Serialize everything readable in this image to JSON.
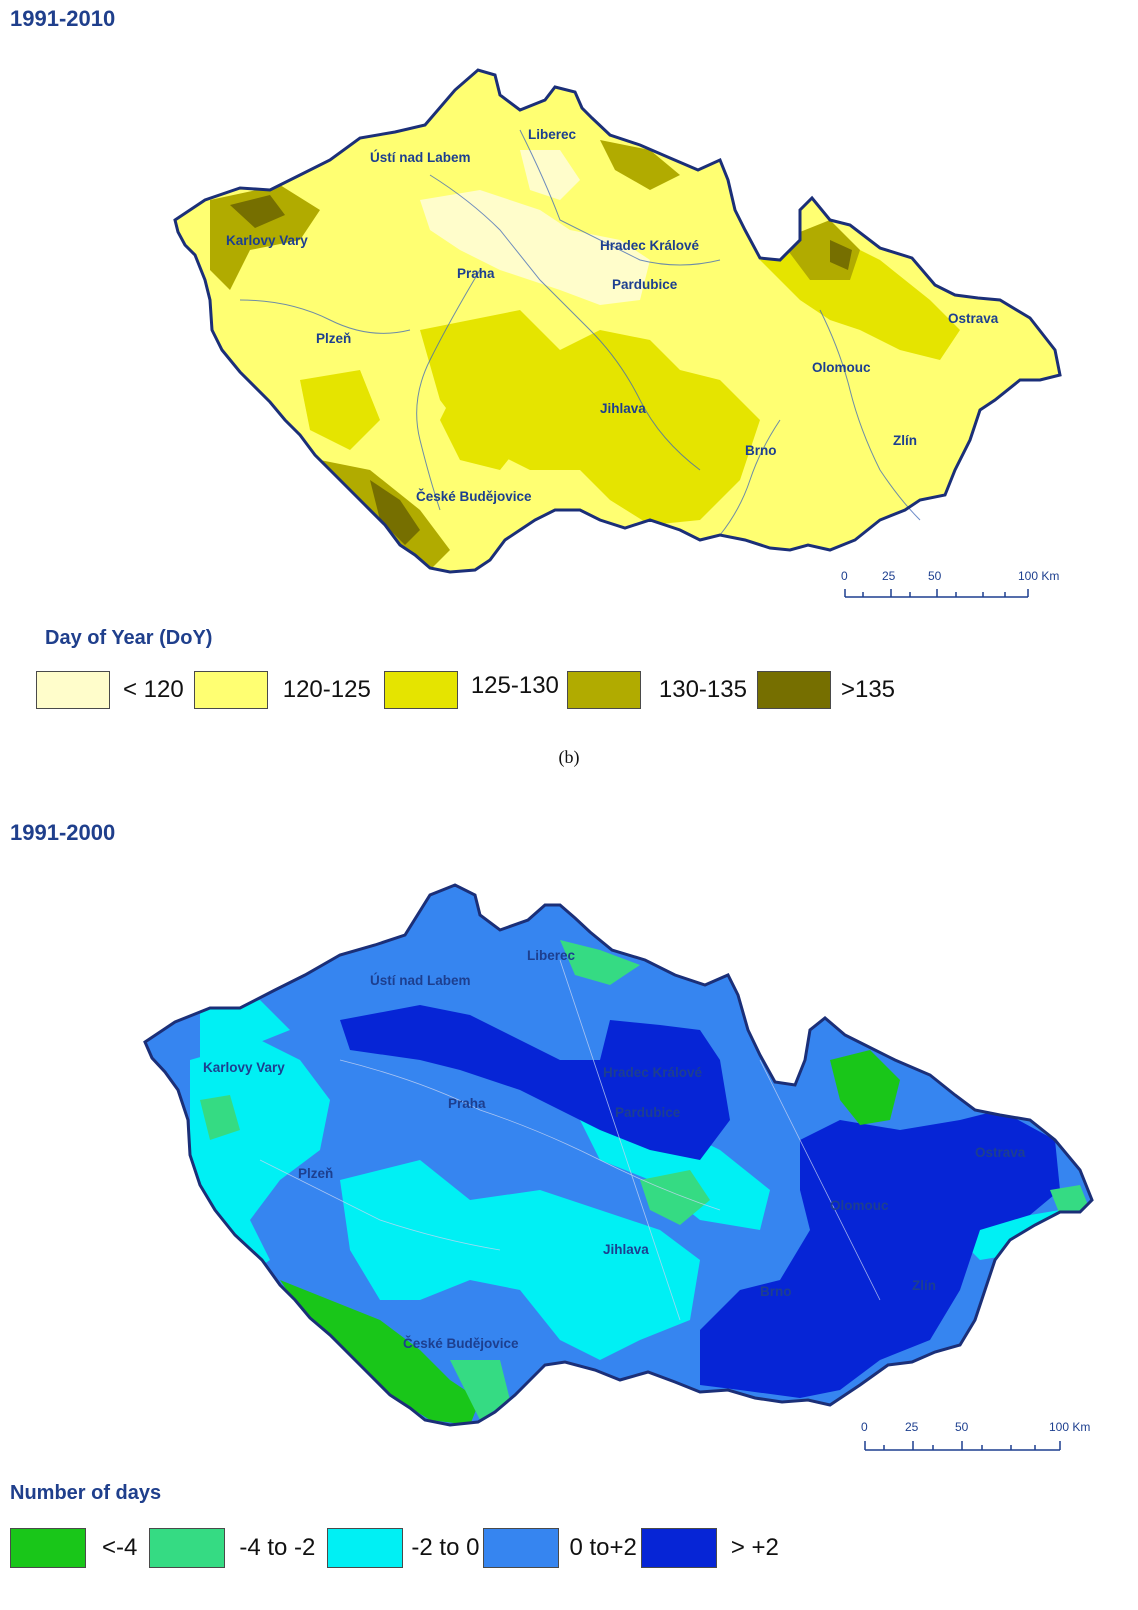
{
  "map_a": {
    "period": "1991-2010",
    "cities": [
      "Liberec",
      "Ústí nad Labem",
      "Karlovy Vary",
      "Hradec Králové",
      "Praha",
      "Pardubice",
      "Ostrava",
      "Plzeň",
      "Olomouc",
      "Jihlava",
      "Brno",
      "Zlín",
      "České Budějovice"
    ],
    "scale": {
      "ticks": [
        "0",
        "25",
        "50",
        "100 Km"
      ]
    },
    "legend": {
      "title": "Day of Year (DoY)",
      "items": [
        {
          "label": "< 120",
          "color": "#fffdcb"
        },
        {
          "label": "120-125",
          "color": "#ffff72"
        },
        {
          "label": "125-130",
          "color": "#e5e400"
        },
        {
          "label": "130-135",
          "color": "#b1ab00"
        },
        {
          "label": ">135",
          "color": "#766f00"
        }
      ]
    }
  },
  "panel_label": "(b)",
  "map_b": {
    "period": "1991-2000",
    "cities": [
      "Liberec",
      "Ústí nad Labem",
      "Karlovy Vary",
      "Hradec Králové",
      "Praha",
      "Pardubice",
      "Ostrava",
      "Plzeň",
      "Olomouc",
      "Jihlava",
      "Brno",
      "Zlín",
      "České Budějovice"
    ],
    "scale": {
      "ticks": [
        "0",
        "25",
        "50",
        "100 Km"
      ]
    },
    "legend": {
      "title": "Number of days",
      "items": [
        {
          "label": "<-4",
          "color": "#19c619"
        },
        {
          "label": "-4 to -2",
          "color": "#35db83"
        },
        {
          "label": "-2 to 0",
          "color": "#00f0f4"
        },
        {
          "label": "0 to+2",
          "color": "#3685f0"
        },
        {
          "label": "> +2",
          "color": "#0625d6"
        }
      ]
    }
  }
}
